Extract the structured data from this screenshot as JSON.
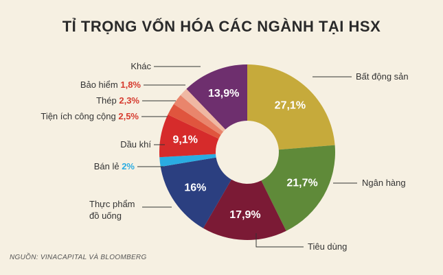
{
  "chart_data": {
    "type": "pie",
    "title": "TỈ TRỌNG VỐN HÓA CÁC NGÀNH TẠI HSX",
    "source": "NGUỒN: VINACAPITAL VÀ BLOOMBERG",
    "categories": [
      "Bất động sản",
      "Ngân hàng",
      "Tiêu dùng",
      "Thực phẩm đồ uống",
      "Bán lẻ",
      "Dầu khí",
      "Tiện ích công cộng",
      "Thép",
      "Bảo hiểm",
      "Khác"
    ],
    "values": [
      27.1,
      21.7,
      17.9,
      16,
      2,
      9.1,
      2.5,
      2.3,
      1.8,
      13.9
    ],
    "value_labels": [
      "27,1%",
      "21,7%",
      "17,9%",
      "16%",
      "2%",
      "9,1%",
      "2,5%",
      "2,3%",
      "1,8%",
      "13,9%"
    ],
    "colors": [
      "#c6aa3b",
      "#5f8a39",
      "#7b1a35",
      "#2b3f80",
      "#2aace2",
      "#d62b2b",
      "#e0553e",
      "#e9856c",
      "#efb8a3",
      "#6e2f6e"
    ]
  }
}
